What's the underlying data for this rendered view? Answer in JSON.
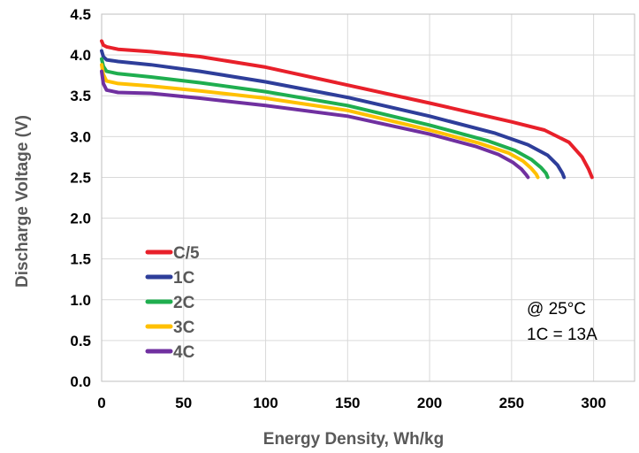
{
  "chart_data": {
    "type": "line",
    "title": "",
    "xlabel": "Energy Density, Wh/kg",
    "ylabel": "Discharge Voltage (V)",
    "xlim": [
      0,
      325
    ],
    "ylim": [
      0,
      4.5
    ],
    "x_ticks": [
      "0",
      "50",
      "100",
      "150",
      "200",
      "250",
      "300"
    ],
    "y_ticks": [
      "0.0",
      "0.5",
      "1.0",
      "1.5",
      "2.0",
      "2.5",
      "3.0",
      "3.5",
      "4.0",
      "4.5"
    ],
    "grid": true,
    "legend_position": "bottom-left",
    "annotations": [
      "@ 25°C",
      "1C = 13A"
    ],
    "series": [
      {
        "name": "C/5",
        "color": "#e8202a",
        "points": [
          [
            0,
            4.17
          ],
          [
            1,
            4.12
          ],
          [
            3,
            4.1
          ],
          [
            10,
            4.07
          ],
          [
            30,
            4.04
          ],
          [
            60,
            3.98
          ],
          [
            100,
            3.85
          ],
          [
            150,
            3.63
          ],
          [
            200,
            3.41
          ],
          [
            250,
            3.18
          ],
          [
            270,
            3.08
          ],
          [
            285,
            2.93
          ],
          [
            293,
            2.75
          ],
          [
            297,
            2.6
          ],
          [
            299,
            2.5
          ]
        ]
      },
      {
        "name": "1C",
        "color": "#2e3e9a",
        "points": [
          [
            0,
            4.05
          ],
          [
            1,
            3.98
          ],
          [
            3,
            3.94
          ],
          [
            10,
            3.92
          ],
          [
            30,
            3.88
          ],
          [
            60,
            3.8
          ],
          [
            100,
            3.67
          ],
          [
            150,
            3.48
          ],
          [
            200,
            3.25
          ],
          [
            240,
            3.04
          ],
          [
            260,
            2.9
          ],
          [
            272,
            2.77
          ],
          [
            278,
            2.65
          ],
          [
            281,
            2.55
          ],
          [
            282,
            2.5
          ]
        ]
      },
      {
        "name": "2C",
        "color": "#1fae4f",
        "points": [
          [
            0,
            3.95
          ],
          [
            1,
            3.86
          ],
          [
            3,
            3.8
          ],
          [
            10,
            3.77
          ],
          [
            30,
            3.73
          ],
          [
            60,
            3.66
          ],
          [
            100,
            3.55
          ],
          [
            150,
            3.38
          ],
          [
            200,
            3.14
          ],
          [
            235,
            2.95
          ],
          [
            252,
            2.83
          ],
          [
            262,
            2.72
          ],
          [
            268,
            2.62
          ],
          [
            271,
            2.55
          ],
          [
            272,
            2.5
          ]
        ]
      },
      {
        "name": "3C",
        "color": "#ffc000",
        "points": [
          [
            0,
            3.88
          ],
          [
            1,
            3.76
          ],
          [
            3,
            3.68
          ],
          [
            10,
            3.65
          ],
          [
            30,
            3.62
          ],
          [
            60,
            3.56
          ],
          [
            100,
            3.47
          ],
          [
            150,
            3.32
          ],
          [
            200,
            3.08
          ],
          [
            230,
            2.92
          ],
          [
            248,
            2.8
          ],
          [
            257,
            2.7
          ],
          [
            262,
            2.61
          ],
          [
            265,
            2.54
          ],
          [
            266,
            2.5
          ]
        ]
      },
      {
        "name": "4C",
        "color": "#7030a0",
        "points": [
          [
            0,
            3.8
          ],
          [
            1,
            3.65
          ],
          [
            3,
            3.57
          ],
          [
            10,
            3.54
          ],
          [
            30,
            3.53
          ],
          [
            60,
            3.47
          ],
          [
            100,
            3.38
          ],
          [
            150,
            3.25
          ],
          [
            200,
            3.03
          ],
          [
            228,
            2.88
          ],
          [
            242,
            2.78
          ],
          [
            251,
            2.68
          ],
          [
            256,
            2.6
          ],
          [
            259,
            2.53
          ],
          [
            260,
            2.5
          ]
        ]
      }
    ]
  }
}
